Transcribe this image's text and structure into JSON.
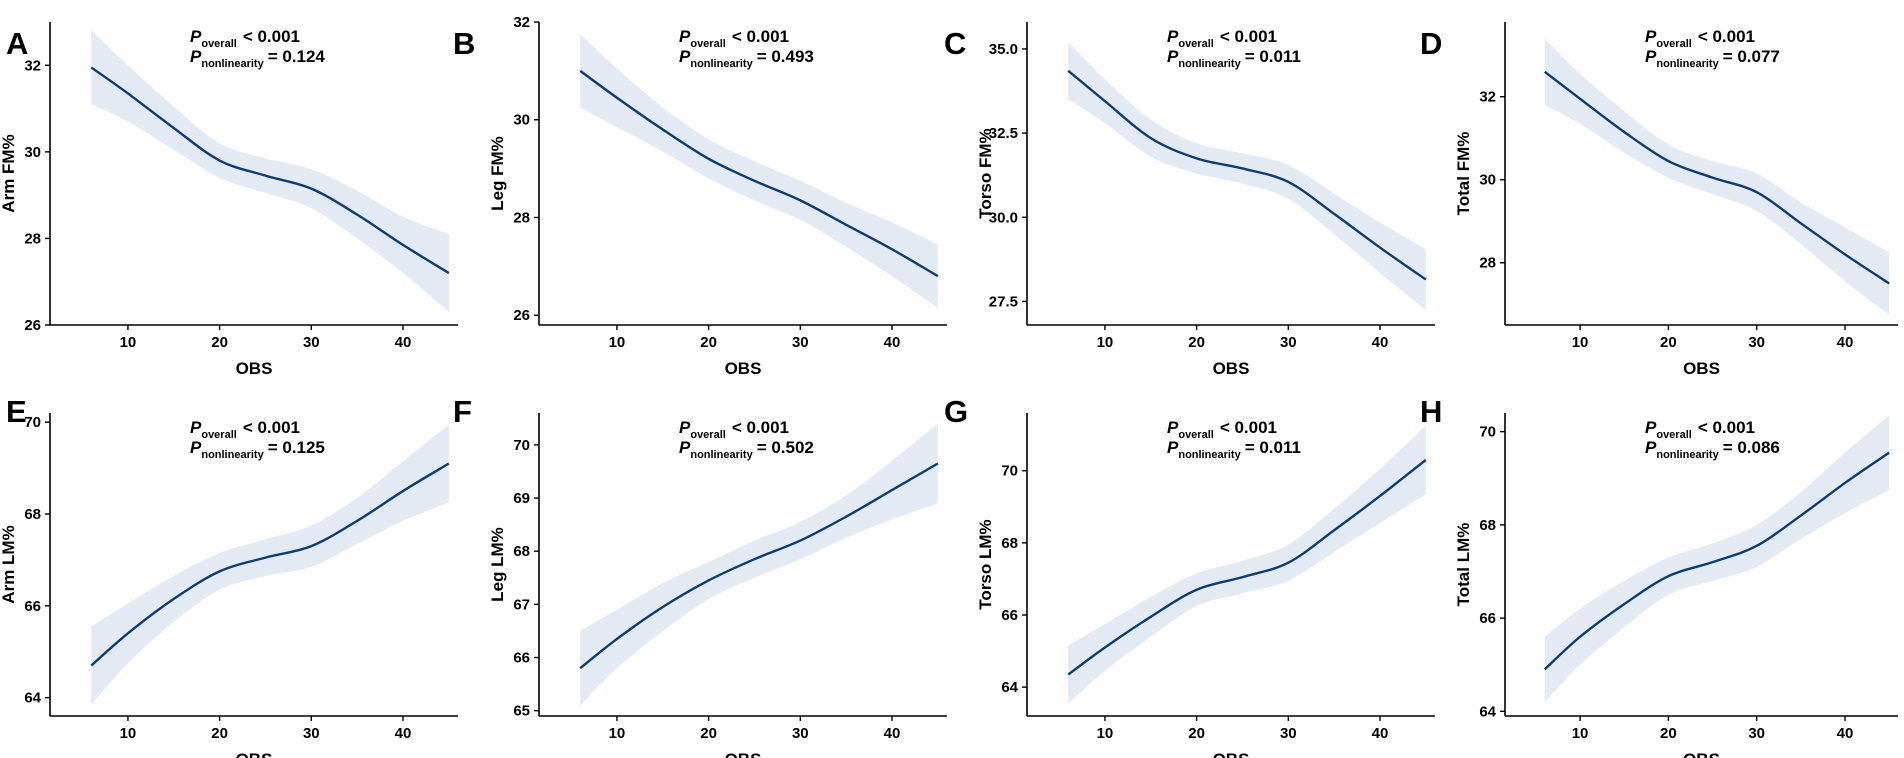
{
  "colors": {
    "line": "#0b3d6e",
    "band": "#e3eaf4",
    "axis": "#000000"
  },
  "chart_data": [
    {
      "panel": "A",
      "type": "line",
      "xlabel": "OBS",
      "ylabel": "Arm FM%",
      "xlim": [
        1.5,
        46
      ],
      "ylim": [
        26,
        33
      ],
      "xticks": [
        10,
        20,
        30,
        40
      ],
      "yticks": [
        26,
        28,
        30,
        32
      ],
      "annotation": {
        "p_label": "P",
        "overall_sub": "overall",
        "overall_val": "< 0.001",
        "nonlin_sub": "nonlinearity",
        "nonlin_val": "= 0.124"
      },
      "x": [
        6,
        10,
        15,
        20,
        25,
        30,
        35,
        40,
        45
      ],
      "y": [
        31.95,
        31.35,
        30.55,
        29.8,
        29.45,
        29.15,
        28.55,
        27.85,
        27.2
      ],
      "lower": [
        31.1,
        30.7,
        30.05,
        29.4,
        29.05,
        28.7,
        28.0,
        27.2,
        26.3
      ],
      "upper": [
        32.8,
        32.0,
        31.05,
        30.2,
        29.85,
        29.6,
        29.1,
        28.5,
        28.1
      ]
    },
    {
      "panel": "B",
      "type": "line",
      "xlabel": "OBS",
      "ylabel": "Leg FM%",
      "xlim": [
        1.5,
        46
      ],
      "ylim": [
        25.8,
        32
      ],
      "xticks": [
        10,
        20,
        30,
        40
      ],
      "yticks": [
        26,
        28,
        30,
        32
      ],
      "annotation": {
        "p_label": "P",
        "overall_sub": "overall",
        "overall_val": "< 0.001",
        "nonlin_sub": "nonlinearity",
        "nonlin_val": "= 0.493"
      },
      "x": [
        6,
        10,
        15,
        20,
        25,
        30,
        35,
        40,
        45
      ],
      "y": [
        31.0,
        30.45,
        29.8,
        29.2,
        28.75,
        28.35,
        27.85,
        27.35,
        26.8
      ],
      "lower": [
        30.25,
        29.85,
        29.35,
        28.8,
        28.35,
        27.95,
        27.4,
        26.8,
        26.15
      ],
      "upper": [
        31.75,
        31.05,
        30.25,
        29.6,
        29.15,
        28.75,
        28.3,
        27.9,
        27.45
      ]
    },
    {
      "panel": "C",
      "type": "line",
      "xlabel": "OBS",
      "ylabel": "Torso FM%",
      "xlim": [
        1.5,
        46
      ],
      "ylim": [
        26.8,
        35.8
      ],
      "xticks": [
        10,
        20,
        30,
        40
      ],
      "yticks": [
        27.5,
        30.0,
        32.5,
        35.0
      ],
      "annotation": {
        "p_label": "P",
        "overall_sub": "overall",
        "overall_val": "< 0.001",
        "nonlin_sub": "nonlinearity",
        "nonlin_val": "= 0.011"
      },
      "x": [
        6,
        10,
        15,
        20,
        25,
        30,
        35,
        40,
        45
      ],
      "y": [
        34.35,
        33.45,
        32.35,
        31.75,
        31.45,
        31.05,
        30.1,
        29.1,
        28.15
      ],
      "lower": [
        33.5,
        32.8,
        31.8,
        31.3,
        31.0,
        30.55,
        29.5,
        28.35,
        27.25
      ],
      "upper": [
        35.2,
        34.1,
        32.9,
        32.2,
        31.9,
        31.55,
        30.7,
        29.85,
        29.05
      ]
    },
    {
      "panel": "D",
      "type": "line",
      "xlabel": "OBS",
      "ylabel": "Total FM%",
      "xlim": [
        1.5,
        46
      ],
      "ylim": [
        26.5,
        33.8
      ],
      "xticks": [
        10,
        20,
        30,
        40
      ],
      "yticks": [
        28,
        30,
        32
      ],
      "annotation": {
        "p_label": "P",
        "overall_sub": "overall",
        "overall_val": "< 0.001",
        "nonlin_sub": "nonlinearity",
        "nonlin_val": "= 0.077"
      },
      "x": [
        6,
        10,
        15,
        20,
        25,
        30,
        35,
        40,
        45
      ],
      "y": [
        32.6,
        31.95,
        31.15,
        30.45,
        30.05,
        29.7,
        28.95,
        28.2,
        27.5
      ],
      "lower": [
        31.8,
        31.35,
        30.65,
        30.05,
        29.65,
        29.25,
        28.45,
        27.55,
        26.75
      ],
      "upper": [
        33.4,
        32.55,
        31.65,
        30.85,
        30.45,
        30.15,
        29.45,
        28.85,
        28.25
      ]
    },
    {
      "panel": "E",
      "type": "line",
      "xlabel": "OBS",
      "ylabel": "Arm LM%",
      "xlim": [
        1.5,
        46
      ],
      "ylim": [
        63.6,
        70.2
      ],
      "xticks": [
        10,
        20,
        30,
        40
      ],
      "yticks": [
        64,
        66,
        68,
        70
      ],
      "annotation": {
        "p_label": "P",
        "overall_sub": "overall",
        "overall_val": "< 0.001",
        "nonlin_sub": "nonlinearity",
        "nonlin_val": "= 0.125"
      },
      "x": [
        6,
        10,
        15,
        20,
        25,
        30,
        35,
        40,
        45
      ],
      "y": [
        64.7,
        65.4,
        66.15,
        66.75,
        67.05,
        67.3,
        67.85,
        68.5,
        69.1
      ],
      "lower": [
        63.85,
        64.75,
        65.65,
        66.35,
        66.65,
        66.85,
        67.35,
        67.85,
        68.25
      ],
      "upper": [
        65.55,
        66.05,
        66.65,
        67.15,
        67.45,
        67.75,
        68.35,
        69.15,
        69.95
      ]
    },
    {
      "panel": "F",
      "type": "line",
      "xlabel": "OBS",
      "ylabel": "Leg LM%",
      "xlim": [
        1.5,
        46
      ],
      "ylim": [
        64.9,
        70.6
      ],
      "xticks": [
        10,
        20,
        30,
        40
      ],
      "yticks": [
        65,
        66,
        67,
        68,
        69,
        70
      ],
      "annotation": {
        "p_label": "P",
        "overall_sub": "overall",
        "overall_val": "< 0.001",
        "nonlin_sub": "nonlinearity",
        "nonlin_val": "= 0.502"
      },
      "x": [
        6,
        10,
        15,
        20,
        25,
        30,
        35,
        40,
        45
      ],
      "y": [
        65.8,
        66.35,
        66.95,
        67.45,
        67.85,
        68.2,
        68.65,
        69.15,
        69.65
      ],
      "lower": [
        65.1,
        65.8,
        66.5,
        67.1,
        67.5,
        67.85,
        68.25,
        68.6,
        68.9
      ],
      "upper": [
        66.5,
        66.9,
        67.4,
        67.8,
        68.2,
        68.55,
        69.05,
        69.7,
        70.4
      ]
    },
    {
      "panel": "G",
      "type": "line",
      "xlabel": "OBS",
      "ylabel": "Torso LM%",
      "xlim": [
        1.5,
        46
      ],
      "ylim": [
        63.2,
        71.6
      ],
      "xticks": [
        10,
        20,
        30,
        40
      ],
      "yticks": [
        64,
        66,
        68,
        70
      ],
      "annotation": {
        "p_label": "P",
        "overall_sub": "overall",
        "overall_val": "< 0.001",
        "nonlin_sub": "nonlinearity",
        "nonlin_val": "= 0.011"
      },
      "x": [
        6,
        10,
        15,
        20,
        25,
        30,
        35,
        40,
        45
      ],
      "y": [
        64.35,
        65.1,
        65.95,
        66.7,
        67.05,
        67.45,
        68.35,
        69.3,
        70.3
      ],
      "lower": [
        63.55,
        64.45,
        65.4,
        66.25,
        66.6,
        66.95,
        67.75,
        68.55,
        69.35
      ],
      "upper": [
        65.15,
        65.75,
        66.5,
        67.15,
        67.5,
        67.95,
        68.95,
        70.05,
        71.25
      ]
    },
    {
      "panel": "H",
      "type": "line",
      "xlabel": "OBS",
      "ylabel": "Total LM%",
      "xlim": [
        1.5,
        46
      ],
      "ylim": [
        63.9,
        70.4
      ],
      "xticks": [
        10,
        20,
        30,
        40
      ],
      "yticks": [
        64,
        66,
        68,
        70
      ],
      "annotation": {
        "p_label": "P",
        "overall_sub": "overall",
        "overall_val": "< 0.001",
        "nonlin_sub": "nonlinearity",
        "nonlin_val": "= 0.086"
      },
      "x": [
        6,
        10,
        15,
        20,
        25,
        30,
        35,
        40,
        45
      ],
      "y": [
        64.9,
        65.6,
        66.3,
        66.9,
        67.2,
        67.55,
        68.2,
        68.9,
        69.55
      ],
      "lower": [
        64.2,
        65.0,
        65.8,
        66.5,
        66.8,
        67.1,
        67.7,
        68.25,
        68.75
      ],
      "upper": [
        65.6,
        66.2,
        66.8,
        67.3,
        67.6,
        68.0,
        68.7,
        69.55,
        70.35
      ]
    }
  ]
}
